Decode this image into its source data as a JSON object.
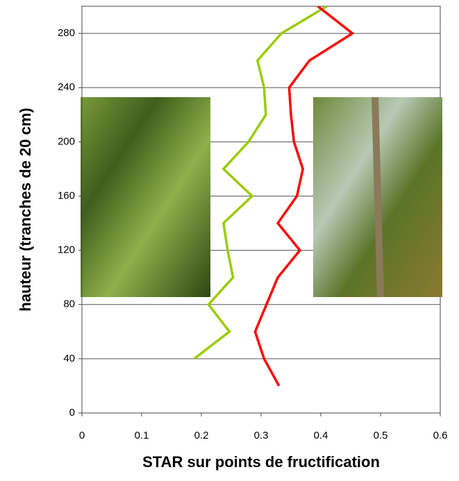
{
  "chart_data": {
    "type": "line",
    "x_label": "STAR sur points de fructification",
    "y_label": "hauteur (tranches de 20 cm)",
    "xlim": [
      0,
      0.6
    ],
    "xticks": [
      0,
      0.1,
      0.2,
      0.3,
      0.4,
      0.5,
      0.6
    ],
    "ylim": [
      0,
      300
    ],
    "yticks": [
      0,
      40,
      80,
      120,
      160,
      200,
      240,
      280
    ],
    "grid": true,
    "series": [
      {
        "color": "#99cc00",
        "x": [
          0.188,
          0.247,
          0.212,
          0.253,
          0.244,
          0.237,
          0.285,
          0.237,
          0.279,
          0.308,
          0.305,
          0.294,
          0.334,
          0.41
        ],
        "values": [
          40,
          60,
          80,
          100,
          120,
          140,
          160,
          180,
          200,
          220,
          240,
          260,
          280,
          300
        ]
      },
      {
        "color": "#ff0000",
        "x": [
          0.33,
          0.305,
          0.29,
          0.309,
          0.328,
          0.365,
          0.328,
          0.36,
          0.37,
          0.355,
          0.35,
          0.347,
          0.381,
          0.453,
          0.395
        ],
        "values": [
          20,
          40,
          60,
          80,
          100,
          120,
          140,
          160,
          180,
          200,
          220,
          240,
          260,
          280,
          300
        ]
      }
    ]
  }
}
